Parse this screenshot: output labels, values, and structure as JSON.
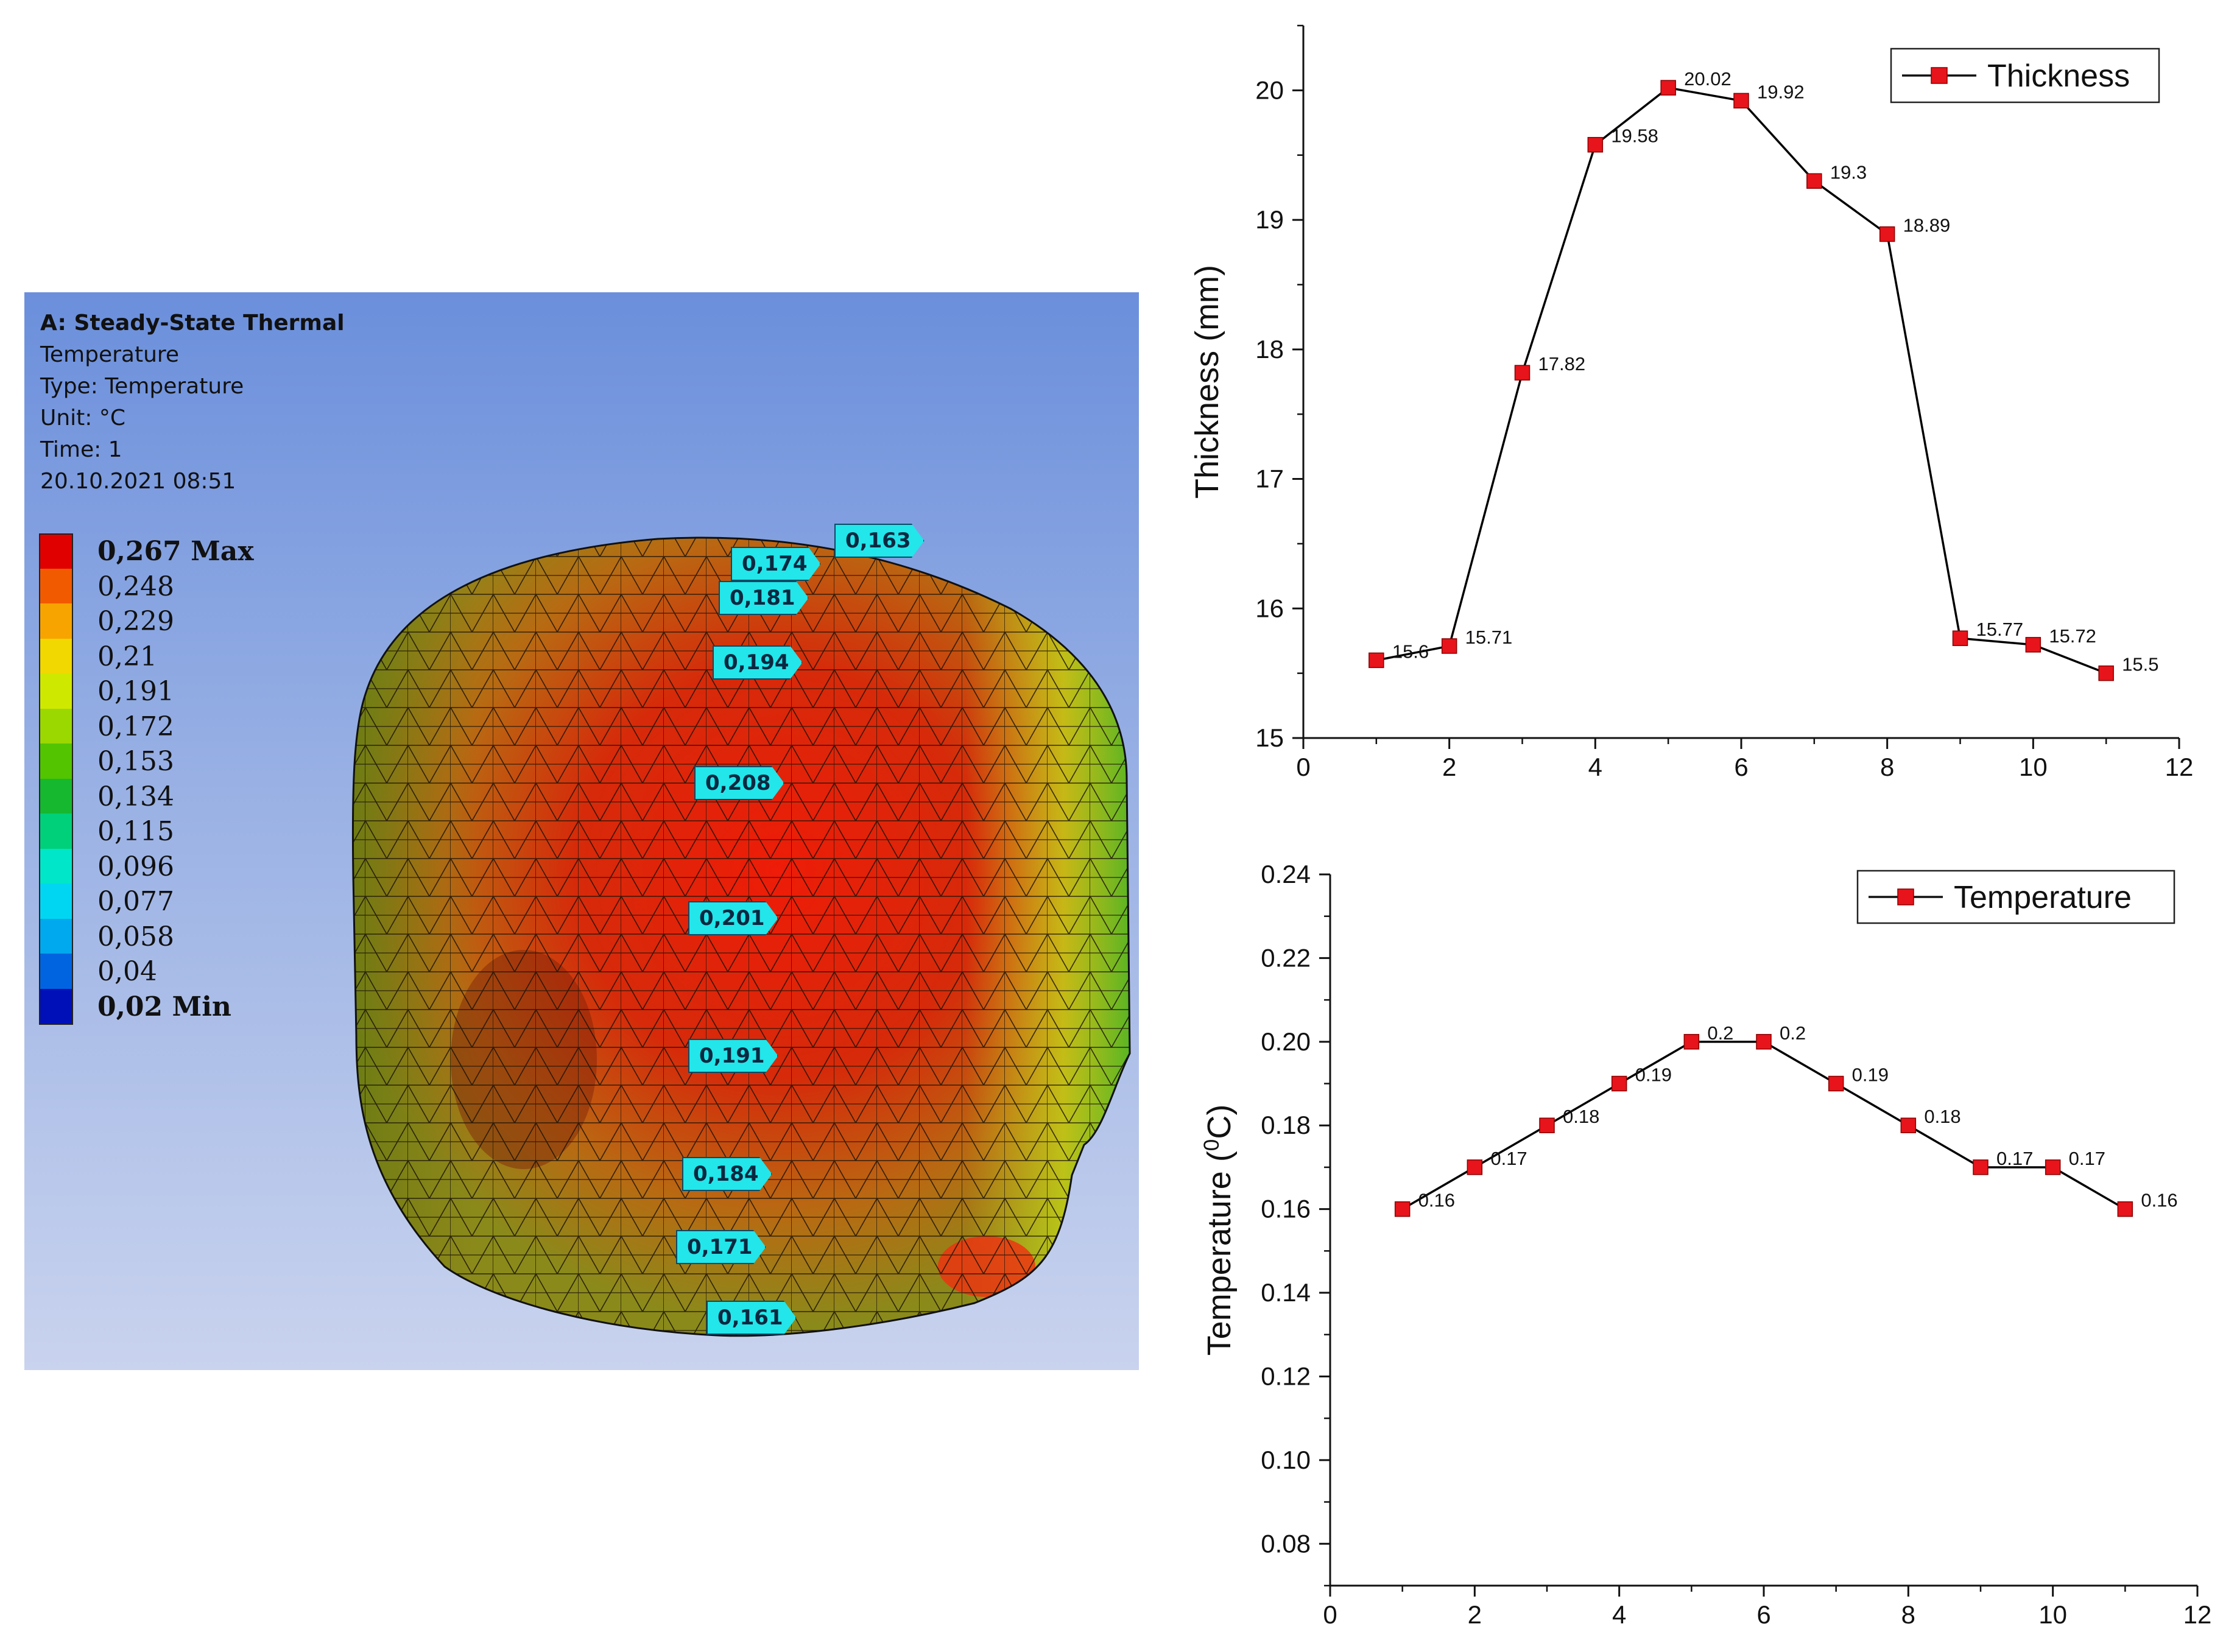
{
  "simulation": {
    "header": {
      "analysis": "A: Steady-State Thermal",
      "result": "Temperature",
      "type": "Type: Temperature",
      "unit": "Unit: °C",
      "time": "Time: 1",
      "datetime": "20.10.2021 08:51"
    },
    "legend": [
      {
        "label": "0,267 Max",
        "color": "#e00000",
        "bold": true
      },
      {
        "label": "0,248",
        "color": "#f25a00"
      },
      {
        "label": "0,229",
        "color": "#f7a400"
      },
      {
        "label": "0,21",
        "color": "#f0d800"
      },
      {
        "label": "0,191",
        "color": "#cfe800"
      },
      {
        "label": "0,172",
        "color": "#9ad800"
      },
      {
        "label": "0,153",
        "color": "#52c400"
      },
      {
        "label": "0,134",
        "color": "#16b830"
      },
      {
        "label": "0,115",
        "color": "#00d07a"
      },
      {
        "label": "0,096",
        "color": "#00e6c8"
      },
      {
        "label": "0,077",
        "color": "#00d6f2"
      },
      {
        "label": "0,058",
        "color": "#00a8ee"
      },
      {
        "label": "0,04",
        "color": "#0064e0"
      },
      {
        "label": "0,02 Min",
        "color": "#0010b8",
        "bold": true
      }
    ],
    "probes": [
      "0,163",
      "0,174",
      "0,181",
      "0,194",
      "0,208",
      "0,201",
      "0,191",
      "0,184",
      "0,171",
      "0,161"
    ]
  },
  "chart_data": [
    {
      "type": "line",
      "title": "",
      "xlabel": "",
      "ylabel": "Thickness (mm)",
      "xlim": [
        0,
        12
      ],
      "ylim": [
        15,
        20.5
      ],
      "xticks": [
        0,
        2,
        4,
        6,
        8,
        10,
        12
      ],
      "yticks": [
        15,
        16,
        17,
        18,
        19,
        20
      ],
      "legend": "Thickness",
      "legend_position": "top-right",
      "marker_color": "#e8141b",
      "line_color": "#000000",
      "x": [
        1,
        2,
        3,
        4,
        5,
        6,
        7,
        8,
        9,
        10,
        11
      ],
      "values": [
        15.6,
        15.71,
        17.82,
        19.58,
        20.02,
        19.92,
        19.3,
        18.89,
        15.77,
        15.72,
        15.5
      ],
      "data_labels": [
        "15.6",
        "15.71",
        "17.82",
        "19.58",
        "20.02",
        "19.92",
        "19.3",
        "18.89",
        "15.77",
        "15.72",
        "15.5"
      ]
    },
    {
      "type": "line",
      "title": "",
      "xlabel": "",
      "ylabel": "Temperature (0C)",
      "ylabel_main": "Temperature (",
      "ylabel_sup": "0",
      "ylabel_tail": "C)",
      "xlim": [
        0,
        12
      ],
      "ylim": [
        0.07,
        0.24
      ],
      "xticks": [
        0,
        2,
        4,
        6,
        8,
        10,
        12
      ],
      "yticks": [
        0.08,
        0.1,
        0.12,
        0.14,
        0.16,
        0.18,
        0.2,
        0.22,
        0.24
      ],
      "ytick_labels": [
        "0.08",
        "0.10",
        "0.12",
        "0.14",
        "0.16",
        "0.18",
        "0.20",
        "0.22",
        "0.24"
      ],
      "legend": "Temperature",
      "legend_position": "top-right",
      "marker_color": "#e8141b",
      "line_color": "#000000",
      "x": [
        1,
        2,
        3,
        4,
        5,
        6,
        7,
        8,
        9,
        10,
        11
      ],
      "values": [
        0.16,
        0.17,
        0.18,
        0.19,
        0.2,
        0.2,
        0.19,
        0.18,
        0.17,
        0.17,
        0.16
      ],
      "data_labels": [
        "0.16",
        "0.17",
        "0.18",
        "0.19",
        "0.2",
        "0.2",
        "0.19",
        "0.18",
        "0.17",
        "0.17",
        "0.16"
      ]
    }
  ]
}
